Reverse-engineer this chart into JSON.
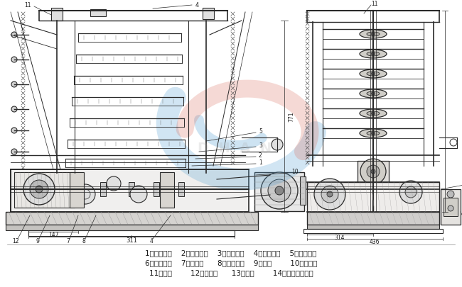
{
  "background_color": "#f5f3f0",
  "watermark_blue": "#5ba4d4",
  "watermark_red": "#d96b5a",
  "line_color": "#2a2a2a",
  "legend_line1": "1、传动主轴    2、小斜齿轮    3、大斜齿轮    4、上偏心轮    5、下偏心轮",
  "legend_line2": "6、小斜齿轮    7、凸轮轴      8、大斜齿轮    9、凸轮        10、跳动杆",
  "legend_line3": "11、锤铁        12、甩油器      13、螺塔        14、自动停车装置",
  "figsize": [
    6.5,
    4.06
  ],
  "dpi": 100
}
